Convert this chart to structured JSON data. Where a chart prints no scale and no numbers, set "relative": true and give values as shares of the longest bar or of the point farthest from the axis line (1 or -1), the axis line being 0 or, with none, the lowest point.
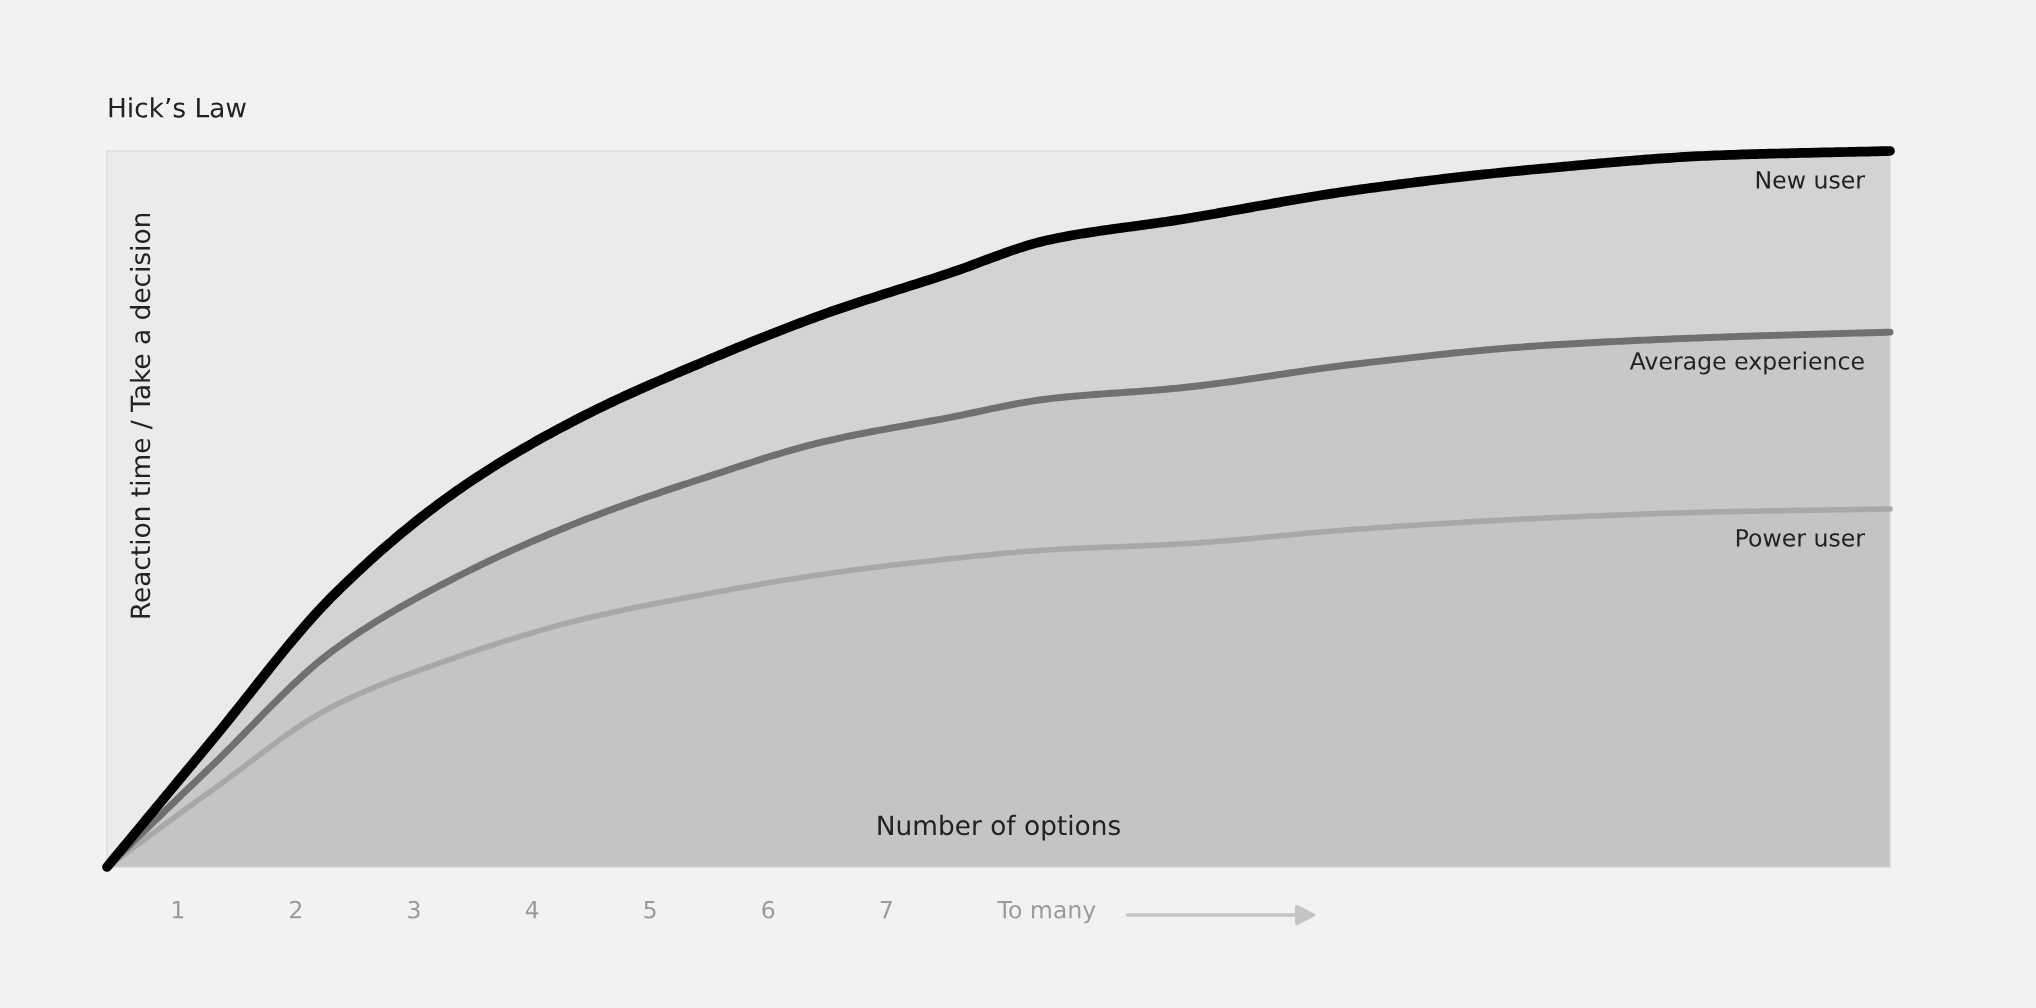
{
  "chart_data": {
    "type": "area",
    "title": "Hick’s Law",
    "xlabel": "Number of options",
    "ylabel": "Reaction time / Take a decision",
    "relative": true,
    "x": [
      0.4,
      1.28,
      2.32,
      3.36,
      4.4,
      5.43,
      6.47,
      7.51,
      8.38,
      9.48,
      11.0,
      12.53,
      14.05,
      15.5
    ],
    "xlim": [
      0.4,
      15.5
    ],
    "xticks": [
      1,
      2,
      3,
      4,
      5,
      6,
      7,
      {
        "value": 8.36,
        "label": "To many"
      }
    ],
    "series": [
      {
        "name": "New user",
        "color": "#000000",
        "values": [
          0,
          0.175,
          0.38,
          0.525,
          0.627,
          0.704,
          0.772,
          0.828,
          0.876,
          0.904,
          0.946,
          0.975,
          0.994,
          1.0
        ]
      },
      {
        "name": "Average experience",
        "color": "#707070",
        "values": [
          0,
          0.14,
          0.303,
          0.405,
          0.482,
          0.542,
          0.594,
          0.627,
          0.654,
          0.669,
          0.703,
          0.728,
          0.74,
          0.747
        ]
      },
      {
        "name": "Power user",
        "color": "#a8a8a8",
        "values": [
          0,
          0.106,
          0.225,
          0.293,
          0.345,
          0.38,
          0.409,
          0.43,
          0.443,
          0.451,
          0.472,
          0.487,
          0.496,
          0.5
        ]
      }
    ],
    "grid": false,
    "legend": false,
    "line_style": "solid",
    "marker": "none"
  }
}
